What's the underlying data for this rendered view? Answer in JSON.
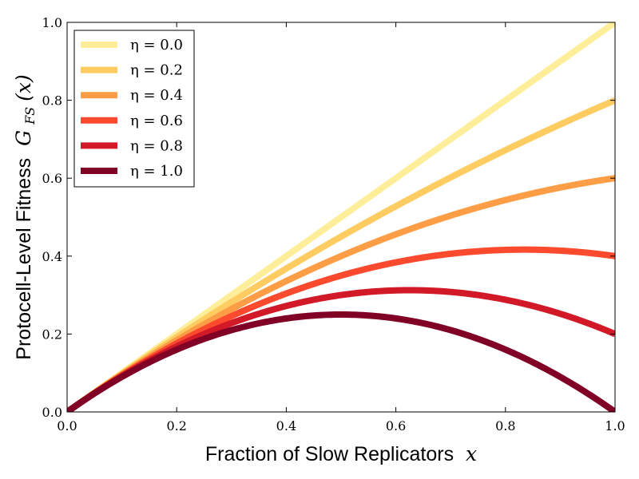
{
  "chart_data": {
    "type": "line",
    "title": "",
    "xlabel": "Fraction of Slow Replicators",
    "xlabel_var": "x",
    "ylabel": "Protocell-Level Fitness",
    "ylabel_var": "G",
    "ylabel_sub": "FS",
    "ylabel_arg": "(x)",
    "xlim": [
      0.0,
      1.0
    ],
    "ylim": [
      0.0,
      1.0
    ],
    "xticks": [
      0.0,
      0.2,
      0.4,
      0.6,
      0.8,
      1.0
    ],
    "yticks": [
      0.0,
      0.2,
      0.4,
      0.6,
      0.8,
      1.0
    ],
    "xtick_labels": [
      "0.0",
      "0.2",
      "0.4",
      "0.6",
      "0.8",
      "1.0"
    ],
    "ytick_labels": [
      "0.0",
      "0.2",
      "0.4",
      "0.6",
      "0.8",
      "1.0"
    ],
    "grid": false,
    "legend_position": "top-left",
    "formula": "x - eta * x^2",
    "x": [
      0.0,
      0.05,
      0.1,
      0.15,
      0.2,
      0.25,
      0.3,
      0.35,
      0.4,
      0.45,
      0.5,
      0.55,
      0.6,
      0.65,
      0.7,
      0.75,
      0.8,
      0.85,
      0.9,
      0.95,
      1.0
    ],
    "series": [
      {
        "name": "η = 0.0",
        "eta": 0.0,
        "label": "η = 0.0",
        "color": "#ffee99",
        "values": [
          0.0,
          0.05,
          0.1,
          0.15,
          0.2,
          0.25,
          0.3,
          0.35,
          0.4,
          0.45,
          0.5,
          0.55,
          0.6,
          0.65,
          0.7,
          0.75,
          0.8,
          0.85,
          0.9,
          0.95,
          1.0
        ]
      },
      {
        "name": "η = 0.2",
        "eta": 0.2,
        "label": "η = 0.2",
        "color": "#fecc60",
        "values": [
          0.0,
          0.0495,
          0.098,
          0.1455,
          0.192,
          0.2375,
          0.282,
          0.3255,
          0.368,
          0.4095,
          0.45,
          0.4895,
          0.528,
          0.5655,
          0.602,
          0.6375,
          0.672,
          0.7055,
          0.738,
          0.7695,
          0.8
        ]
      },
      {
        "name": "η = 0.4",
        "eta": 0.4,
        "label": "η = 0.4",
        "color": "#fd9d45",
        "values": [
          0.0,
          0.049,
          0.096,
          0.141,
          0.184,
          0.225,
          0.264,
          0.301,
          0.336,
          0.369,
          0.4,
          0.429,
          0.456,
          0.481,
          0.504,
          0.525,
          0.544,
          0.561,
          0.576,
          0.589,
          0.6
        ]
      },
      {
        "name": "η = 0.6",
        "eta": 0.6,
        "label": "η = 0.6",
        "color": "#fb4a2e",
        "values": [
          0.0,
          0.0485,
          0.094,
          0.1365,
          0.176,
          0.2125,
          0.246,
          0.2765,
          0.304,
          0.3285,
          0.35,
          0.3685,
          0.384,
          0.3965,
          0.406,
          0.4125,
          0.416,
          0.4165,
          0.414,
          0.4085,
          0.4
        ]
      },
      {
        "name": "η = 0.8",
        "eta": 0.8,
        "label": "η = 0.8",
        "color": "#d21927",
        "values": [
          0.0,
          0.048,
          0.092,
          0.132,
          0.168,
          0.2,
          0.228,
          0.252,
          0.272,
          0.288,
          0.3,
          0.308,
          0.312,
          0.312,
          0.308,
          0.3,
          0.288,
          0.272,
          0.252,
          0.228,
          0.2
        ]
      },
      {
        "name": "η = 1.0",
        "eta": 1.0,
        "label": "η = 1.0",
        "color": "#800026",
        "values": [
          0.0,
          0.0475,
          0.09,
          0.1275,
          0.16,
          0.1875,
          0.21,
          0.2275,
          0.24,
          0.2475,
          0.25,
          0.2475,
          0.24,
          0.2275,
          0.21,
          0.1875,
          0.16,
          0.1275,
          0.09,
          0.0475,
          0.0
        ]
      }
    ]
  }
}
